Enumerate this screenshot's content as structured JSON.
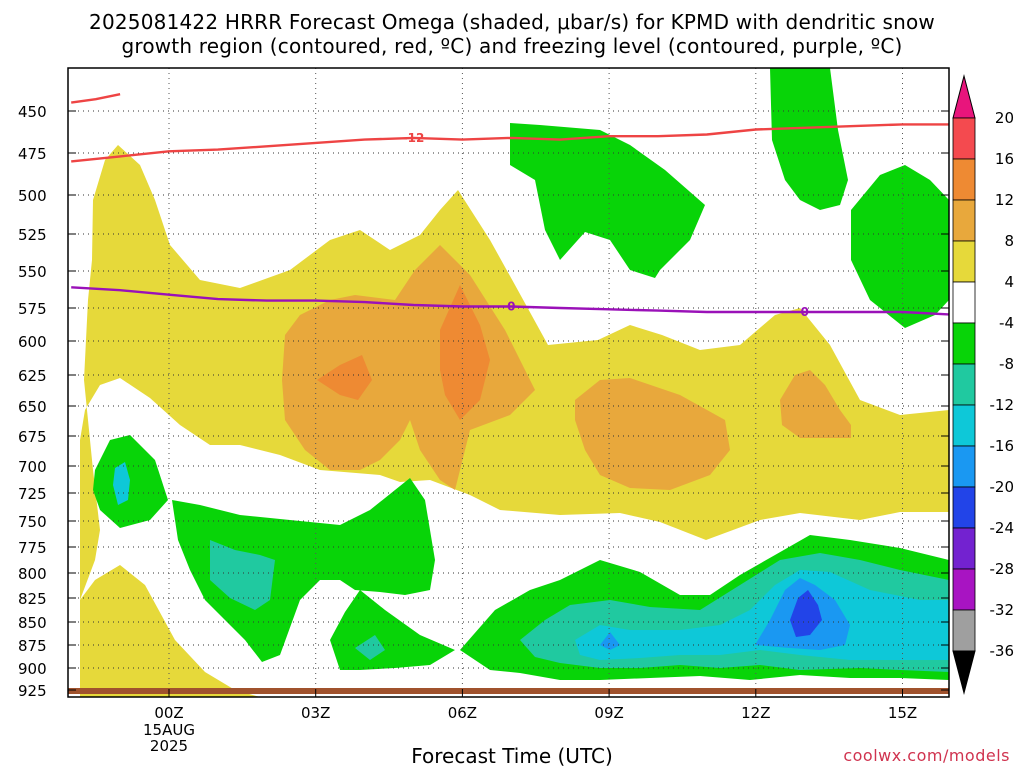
{
  "title": {
    "line1": "2025081422 HRRR Forecast Omega (shaded, μbar/s) for KPMD with dendritic snow",
    "line2": "growth region (contoured, red, ºC) and freezing level (contoured, purple, ºC)"
  },
  "footer": {
    "xlabel": "Forecast Time (UTC)",
    "credit": "coolwx.com/models"
  },
  "chart_data": {
    "type": "heatmap",
    "xlabel": "Forecast Time (UTC)",
    "ylabel": "",
    "x_ticks": [
      {
        "x": 0,
        "label": "00Z",
        "sub": [
          "15AUG",
          "2025"
        ]
      },
      {
        "x": 3,
        "label": "03Z"
      },
      {
        "x": 6,
        "label": "06Z"
      },
      {
        "x": 9,
        "label": "09Z"
      },
      {
        "x": 12,
        "label": "12Z"
      },
      {
        "x": 15,
        "label": "15Z"
      }
    ],
    "x_range": [
      -2,
      16
    ],
    "y_range": [
      925,
      440
    ],
    "y_ticks": [
      450,
      475,
      500,
      525,
      550,
      575,
      600,
      625,
      650,
      675,
      700,
      725,
      750,
      775,
      800,
      825,
      850,
      875,
      900,
      925
    ],
    "grid": true,
    "colorbar": {
      "levels": [
        20,
        16,
        12,
        8,
        4,
        -4,
        -8,
        -12,
        -16,
        -20,
        -24,
        -28,
        -32,
        -36
      ],
      "colors": {
        "16_20": "#f44a4f",
        "12_16": "#ee8a33",
        "8_12": "#e8a83c",
        "4_8": "#e6d93a",
        "m4_4": "#ffffff",
        "m8_m4": "#08d408",
        "m12_m8": "#20c9a0",
        "m16_m12": "#0ec8d8",
        "m20_m16": "#1a98f2",
        "m24_m20": "#2244e8",
        "m28_m24": "#7322d0",
        "m32_m28": "#a814c2",
        "m36_m32": "#9f9f9f",
        "top_arrow": "#e8157c",
        "bottom_arrow": "#000000"
      }
    },
    "contours": [
      {
        "name": "dendritic snow growth region",
        "color": "#ee4444",
        "label": "-12",
        "points": [
          [
            -2.0,
            480
          ],
          [
            -1.0,
            477
          ],
          [
            0.0,
            474
          ],
          [
            1.0,
            473
          ],
          [
            2.0,
            471
          ],
          [
            3.0,
            469
          ],
          [
            4.0,
            467
          ],
          [
            5.0,
            466
          ],
          [
            6.0,
            467
          ],
          [
            7.0,
            466
          ],
          [
            8.0,
            467
          ],
          [
            9.0,
            465
          ],
          [
            10.0,
            465
          ],
          [
            11.0,
            464
          ],
          [
            12.0,
            461
          ],
          [
            13.0,
            460
          ],
          [
            14.0,
            459
          ],
          [
            15.0,
            458
          ],
          [
            16.0,
            458
          ]
        ]
      },
      {
        "name": "dendritic snow growth region (upper)",
        "color": "#ee4444",
        "label": "",
        "points": [
          [
            -2.0,
            445
          ],
          [
            -1.5,
            443
          ],
          [
            -1.0,
            440
          ]
        ]
      },
      {
        "name": "freezing level",
        "color": "#9a11b8",
        "label": "0",
        "points": [
          [
            -2.0,
            561
          ],
          [
            -1.0,
            563
          ],
          [
            0.0,
            566
          ],
          [
            1.0,
            569
          ],
          [
            2.0,
            570
          ],
          [
            3.0,
            570
          ],
          [
            4.0,
            571
          ],
          [
            5.0,
            573
          ],
          [
            6.0,
            574
          ],
          [
            7.0,
            574
          ],
          [
            8.0,
            575
          ],
          [
            9.0,
            576
          ],
          [
            10.0,
            577
          ],
          [
            11.0,
            578
          ],
          [
            12.0,
            578
          ],
          [
            13.0,
            578
          ],
          [
            14.0,
            578
          ],
          [
            15.0,
            578
          ],
          [
            16.0,
            580
          ]
        ]
      }
    ],
    "ground_level": 925,
    "ground_color": "#a0522d"
  }
}
